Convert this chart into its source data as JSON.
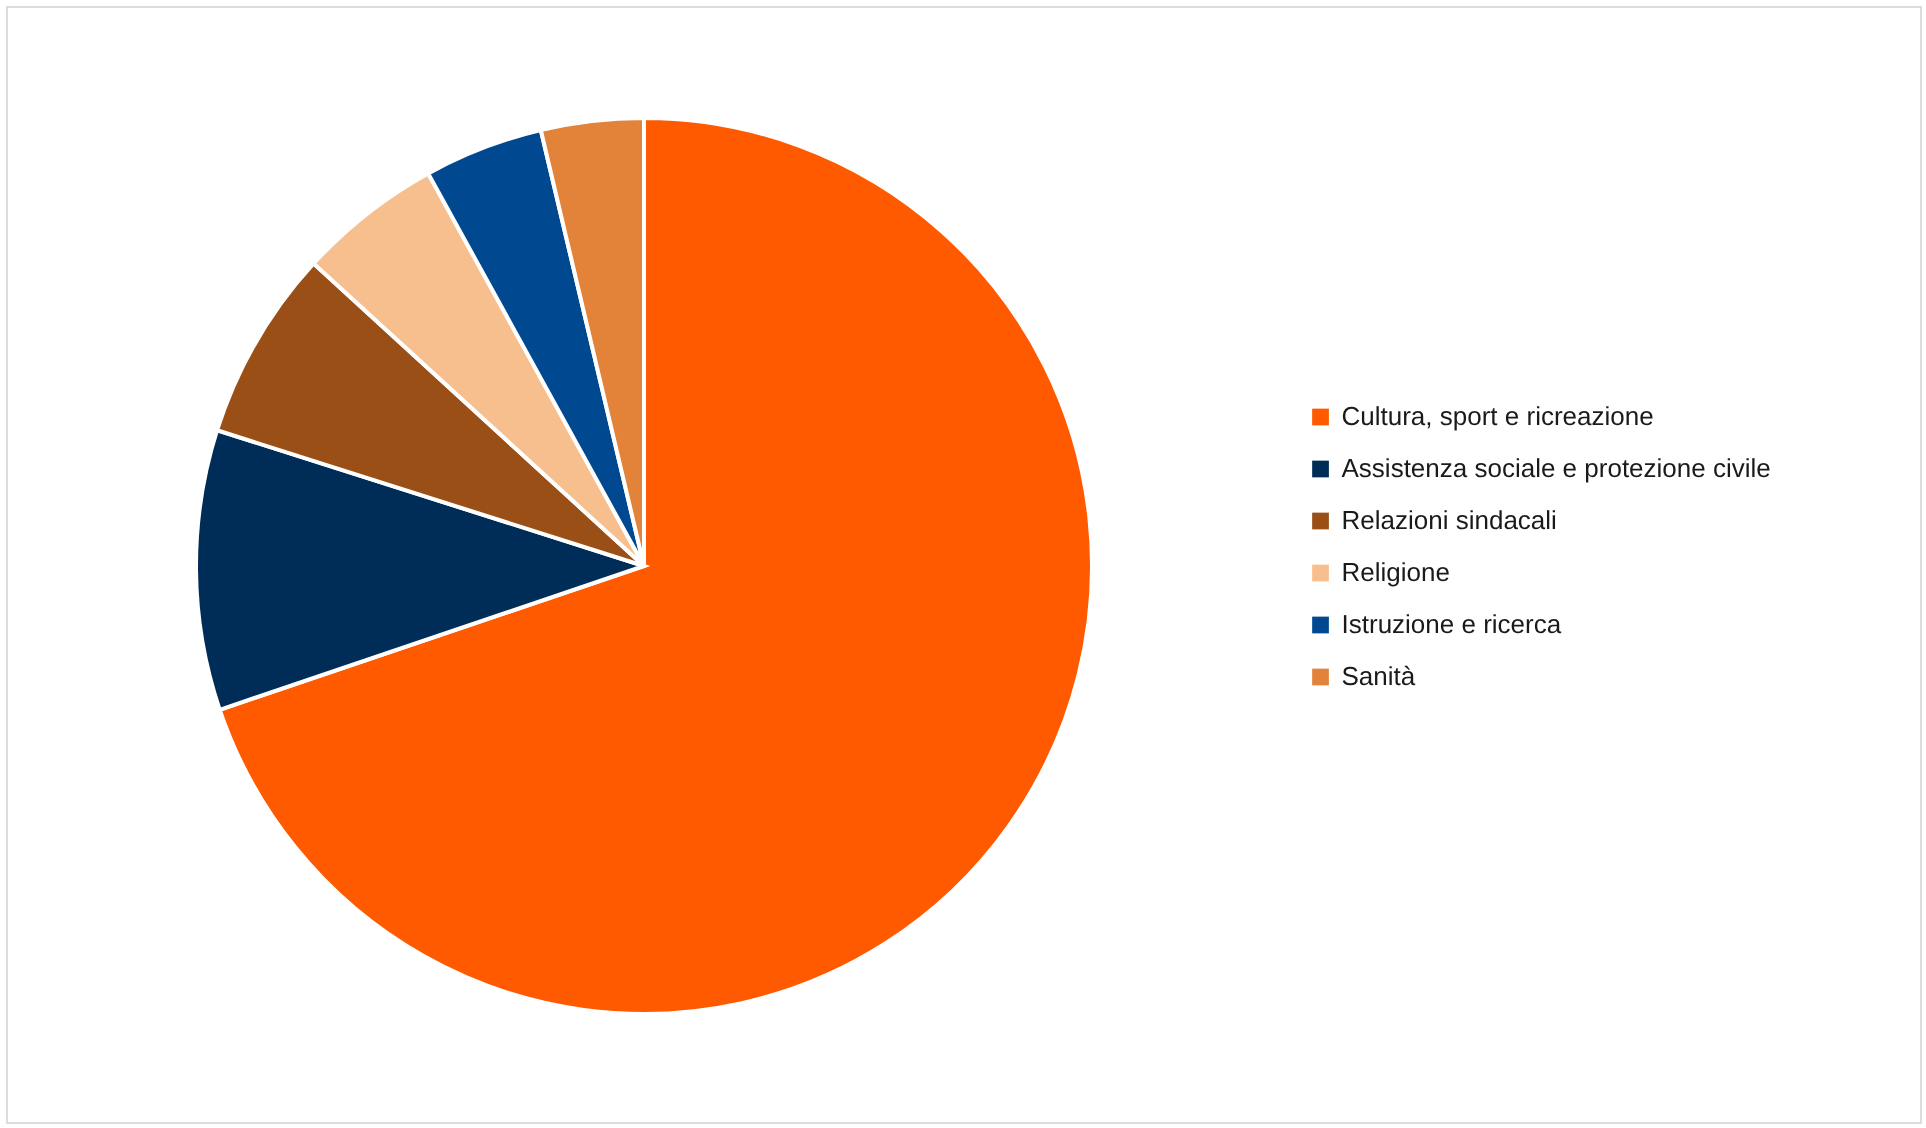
{
  "chart_data": {
    "type": "pie",
    "categories": [
      "Cultura, sport e ricreazione",
      "Assistenza sociale e protezione civile",
      "Relazioni sindacali",
      "Religione",
      "Istruzione e ricerca",
      "Sanità"
    ],
    "values": [
      69.8,
      10.1,
      6.9,
      5.2,
      4.3,
      3.7
    ],
    "colors": [
      "#ff5a00",
      "#002d57",
      "#9a4f17",
      "#f8bf8e",
      "#004990",
      "#e3833a"
    ],
    "legend": "right"
  }
}
